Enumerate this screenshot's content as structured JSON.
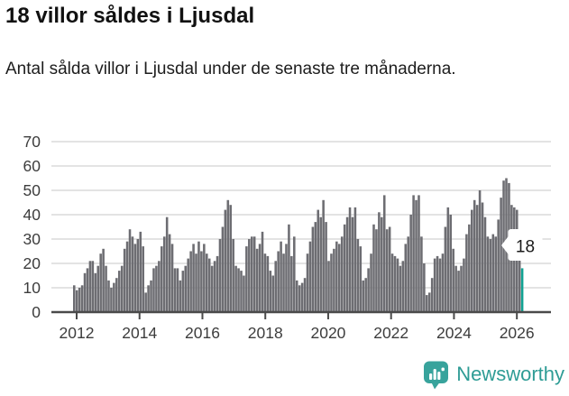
{
  "header": {
    "title": "18 villor såldes i Ljusdal",
    "subtitle": "Antal sålda villor i Ljusdal under de senaste tre månaderna."
  },
  "chart_data": {
    "type": "bar",
    "title": "18 villor såldes i Ljusdal",
    "subtitle": "Antal sålda villor i Ljusdal under de senaste tre månaderna.",
    "unit": "sålda villor (rullande 3 månader)",
    "frequency": "monthly",
    "x_start": "2012-01",
    "x_end": "2026-02",
    "ylim": [
      0,
      75
    ],
    "grid": true,
    "yticks": [
      0,
      10,
      20,
      30,
      40,
      50,
      60,
      70
    ],
    "xticks": [
      "2012",
      "2014",
      "2016",
      "2018",
      "2020",
      "2022",
      "2024",
      "2026"
    ],
    "values": [
      11,
      9,
      10,
      11,
      16,
      18,
      21,
      21,
      16,
      19,
      24,
      26,
      19,
      13,
      10,
      12,
      14,
      17,
      19,
      26,
      29,
      34,
      31,
      28,
      30,
      33,
      27,
      8,
      11,
      13,
      18,
      19,
      21,
      27,
      31,
      39,
      32,
      28,
      18,
      18,
      13,
      17,
      19,
      22,
      25,
      28,
      24,
      29,
      25,
      28,
      24,
      22,
      19,
      21,
      23,
      30,
      35,
      42,
      46,
      44,
      30,
      19,
      18,
      17,
      15,
      27,
      30,
      31,
      31,
      26,
      28,
      33,
      24,
      23,
      17,
      15,
      21,
      25,
      29,
      24,
      28,
      36,
      23,
      31,
      13,
      11,
      12,
      14,
      24,
      29,
      35,
      37,
      42,
      39,
      46,
      37,
      21,
      24,
      26,
      29,
      28,
      31,
      36,
      39,
      43,
      39,
      43,
      30,
      27,
      13,
      14,
      18,
      24,
      36,
      34,
      41,
      39,
      48,
      34,
      35,
      24,
      23,
      22,
      19,
      21,
      28,
      31,
      40,
      48,
      46,
      48,
      31,
      20,
      7,
      8,
      14,
      22,
      23,
      22,
      24,
      35,
      43,
      40,
      26,
      19,
      17,
      19,
      22,
      32,
      36,
      42,
      46,
      44,
      50,
      45,
      39,
      31,
      30,
      32,
      31,
      38,
      47,
      54,
      55,
      53,
      44,
      43,
      42,
      22,
      18
    ],
    "highlight_last": true,
    "annotation": {
      "text": "18",
      "target": "last-bar"
    }
  },
  "footer": {
    "brand": "Newsworthy"
  },
  "colors": {
    "bar": "#6d6d72",
    "highlight": "#10a292",
    "grid": "#e3e3e3",
    "axis": "#4a4a4a",
    "tick_label": "#3d3d3d",
    "annotation_text": "#1a1a1a",
    "brand_teal": "#2e9c95",
    "logo_teal": "#38a39c"
  }
}
